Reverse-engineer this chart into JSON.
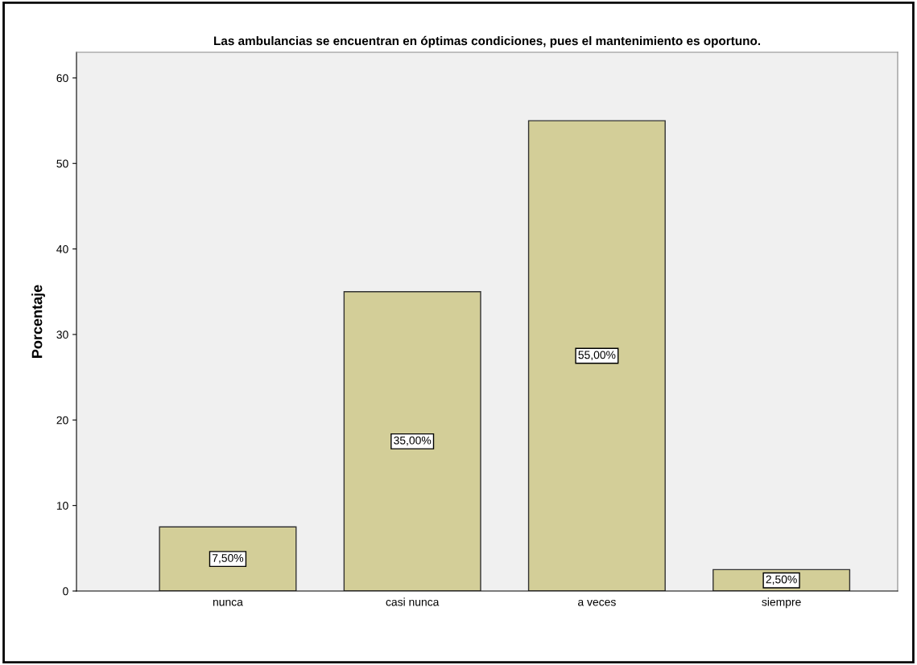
{
  "chart_data": {
    "type": "bar",
    "title": "Las ambulancias se encuentran en óptimas condiciones, pues el mantenimiento es oportuno.",
    "ylabel": "Porcentaje",
    "categories": [
      "nunca",
      "casi nunca",
      "a veces",
      "siempre"
    ],
    "values": [
      7.5,
      35,
      55,
      2.5
    ],
    "value_labels": [
      "7,50%",
      "35,00%",
      "55,00%",
      "2,50%"
    ],
    "color": "#d3ce98",
    "ylim": [
      0,
      63
    ],
    "yticks": [
      0,
      10,
      20,
      30,
      40,
      50,
      60
    ],
    "grid": false
  }
}
